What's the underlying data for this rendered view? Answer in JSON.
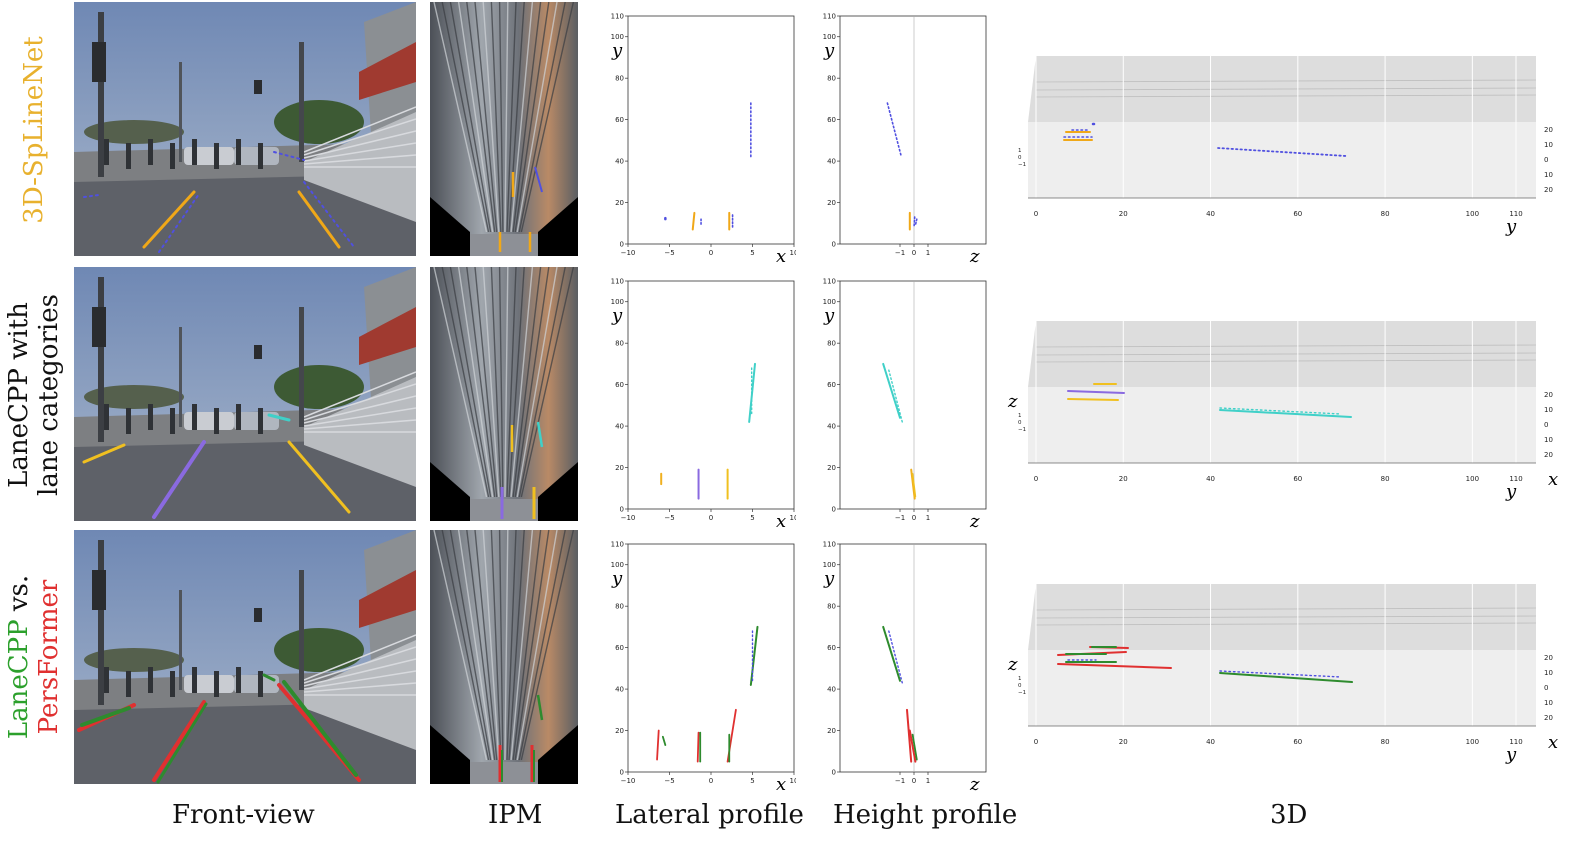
{
  "row_labels": [
    {
      "lines": [
        {
          "parts": [
            {
              "text": "3D-SpLineNet",
              "color": "#e8b12e"
            }
          ]
        }
      ]
    },
    {
      "lines": [
        {
          "parts": [
            {
              "text": "LaneCPP with",
              "color": "#111111"
            }
          ]
        },
        {
          "parts": [
            {
              "text": "lane categories",
              "color": "#111111"
            }
          ]
        }
      ]
    },
    {
      "lines": [
        {
          "parts": [
            {
              "text": "LaneCPP",
              "color": "#2ca02c"
            },
            {
              "text": " vs.",
              "color": "#111111"
            }
          ]
        },
        {
          "parts": [
            {
              "text": "PersFormer",
              "color": "#e03030"
            }
          ]
        }
      ]
    }
  ],
  "column_labels": [
    "Front-view",
    "IPM",
    "Lateral profile",
    "Height profile",
    "3D"
  ],
  "colors": {
    "splinenet": "#f0a818",
    "splinenet_gt": "#5050e0",
    "cat_orange": "#f0b020",
    "cat_purple": "#8a6ae0",
    "cat_yellow": "#f0c020",
    "cat_cyan": "#40d0c8",
    "lanecpp": "#2e8b2e",
    "persformer": "#e03030"
  },
  "lateral_axis": {
    "x_ticks": [
      "−10",
      "−5",
      "0",
      "5",
      "10"
    ],
    "y_ticks": [
      "0",
      "20",
      "40",
      "60",
      "80",
      "100",
      "110"
    ],
    "x_label": "x",
    "y_label": "y"
  },
  "height_axis": {
    "z_ticks": [
      "−1",
      "0",
      "1"
    ],
    "y_ticks": [
      "0",
      "20",
      "40",
      "60",
      "80",
      "100",
      "110"
    ],
    "z_label": "z",
    "y_label": "y"
  },
  "axis3d": {
    "y_ticks": [
      "0",
      "20",
      "40",
      "60",
      "80",
      "100",
      "110"
    ],
    "x_ticks": [
      "20",
      "10",
      "0",
      "10",
      "20"
    ],
    "z_ticks": [
      "1",
      "0",
      "−1"
    ],
    "y_label": "y",
    "x_label": "x",
    "z_label": "z"
  }
}
